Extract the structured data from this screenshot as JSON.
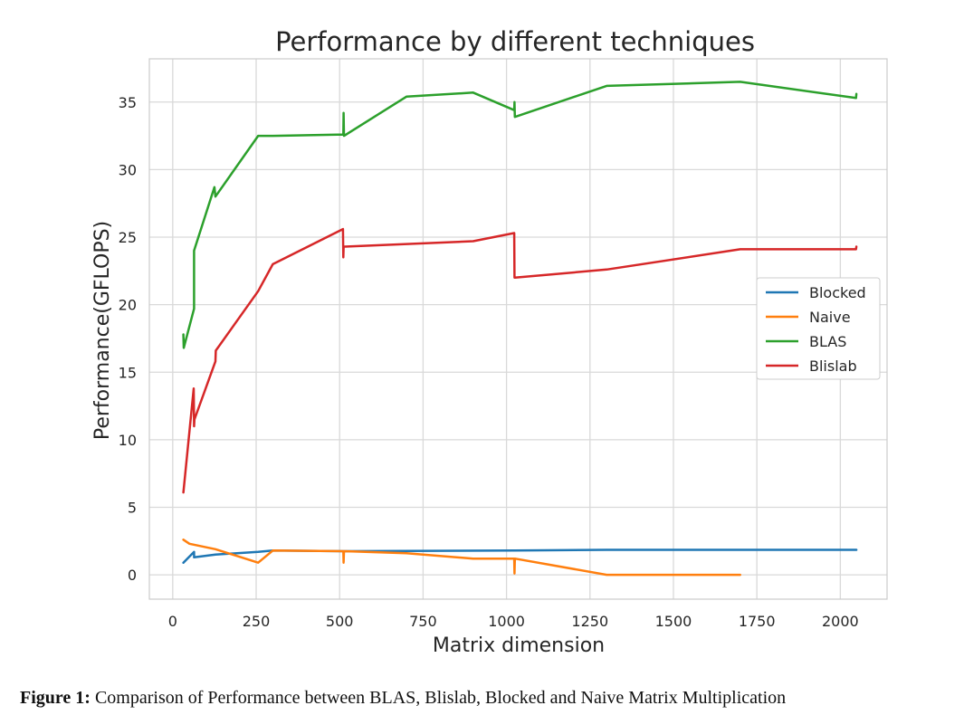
{
  "chart_data": {
    "type": "line",
    "title": "Performance by different techniques",
    "xlabel": "Matrix dimension",
    "ylabel": "Performance(GFLOPS)",
    "xlim": [
      -70,
      2140
    ],
    "ylim": [
      -1.8,
      38.2
    ],
    "xticks": [
      0,
      250,
      500,
      750,
      1000,
      1250,
      1500,
      1750,
      2000
    ],
    "yticks": [
      0,
      5,
      10,
      15,
      20,
      25,
      30,
      35
    ],
    "grid": true,
    "legend_position": "center-right",
    "series": [
      {
        "name": "Blocked",
        "color": "#1f77b4",
        "x": [
          32,
          64,
          64,
          128,
          256,
          300,
          512,
          1024,
          1300,
          1700,
          2048
        ],
        "y": [
          0.9,
          1.7,
          1.3,
          1.5,
          1.7,
          1.8,
          1.75,
          1.8,
          1.85,
          1.85,
          1.85
        ]
      },
      {
        "name": "Naive",
        "color": "#ff7f0e",
        "x": [
          32,
          50,
          128,
          256,
          300,
          511,
          512,
          513,
          700,
          900,
          1023,
          1024,
          1025,
          1300,
          1700
        ],
        "y": [
          2.6,
          2.3,
          1.9,
          0.9,
          1.8,
          1.75,
          0.9,
          1.75,
          1.6,
          1.2,
          1.2,
          0.1,
          1.2,
          0.0,
          0.0
        ]
      },
      {
        "name": "BLAS",
        "color": "#2ca02c",
        "x": [
          32,
          33,
          64,
          64,
          125,
          128,
          256,
          300,
          511,
          512,
          513,
          700,
          900,
          1023,
          1024,
          1025,
          1300,
          1700,
          2047,
          2048
        ],
        "y": [
          17.8,
          16.8,
          19.7,
          24.0,
          28.7,
          28.0,
          32.5,
          32.5,
          32.6,
          34.2,
          32.5,
          35.4,
          35.7,
          34.4,
          35.0,
          33.9,
          36.2,
          36.5,
          35.3,
          35.6
        ],
        "legend_label": "BLAS"
      },
      {
        "name": "Blislab",
        "color": "#d62728",
        "x": [
          32,
          63,
          64,
          65,
          128,
          129,
          256,
          300,
          510,
          511,
          512,
          513,
          900,
          1023,
          1024,
          1025,
          1300,
          1700,
          2047,
          2048
        ],
        "y": [
          6.1,
          13.8,
          11.0,
          11.5,
          15.8,
          16.6,
          21.0,
          23.0,
          25.6,
          23.5,
          24.2,
          24.3,
          24.7,
          25.3,
          22.0,
          22.0,
          22.6,
          24.1,
          24.1,
          24.3
        ]
      }
    ]
  },
  "caption": {
    "label": "Figure 1:",
    "text": " Comparison of Performance between BLAS, Blislab, Blocked and Naive Matrix Multiplication"
  }
}
